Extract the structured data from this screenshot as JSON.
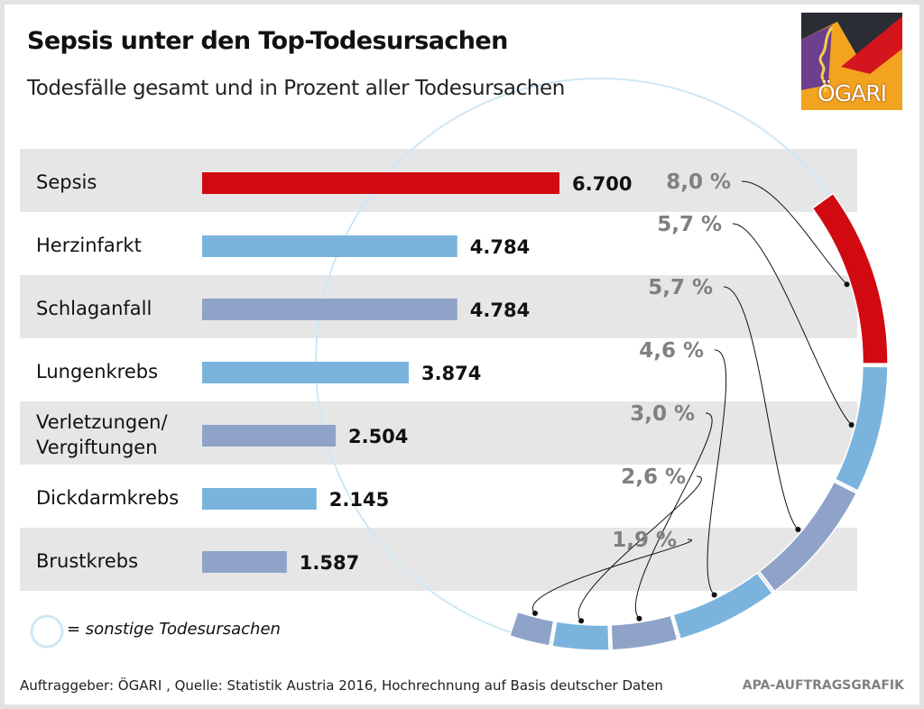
{
  "title": "Sepsis unter den Top-Todesursachen",
  "subtitle": "Todesfälle gesamt und in Prozent aller Todesursachen",
  "logo": {
    "text": "ÖGARI"
  },
  "legend": {
    "text": "= sonstige Todesursachen",
    "icon": "circle-outline-icon"
  },
  "source": "Auftraggeber: ÖGARI , Quelle: Statistik Austria 2016, Hochrechnung auf Basis deutscher Daten",
  "credit": "APA-AUFTRAGSGRAFIK",
  "colors": {
    "highlight": "#d10a12",
    "light_blue": "#7ab4dd",
    "grey_blue": "#8fa3c8",
    "row_shade": "#e6e6e6",
    "percent_text": "#808080",
    "ring_outline": "#cfe7f5"
  },
  "chart_data": {
    "type": "bar",
    "orientation": "horizontal",
    "title": "Sepsis unter den Top-Todesursachen",
    "subtitle": "Todesfälle gesamt und in Prozent aller Todesursachen",
    "xlim": [
      0,
      6700
    ],
    "categories": [
      {
        "label_lines": [
          "Sepsis"
        ],
        "value": 6700,
        "value_label": "6.700",
        "percent": 8.0,
        "percent_label": "8,0 %",
        "color": "#d10a12"
      },
      {
        "label_lines": [
          "Herzinfarkt"
        ],
        "value": 4784,
        "value_label": "4.784",
        "percent": 5.7,
        "percent_label": "5,7 %",
        "color": "#7ab4dd"
      },
      {
        "label_lines": [
          "Schlaganfall"
        ],
        "value": 4784,
        "value_label": "4.784",
        "percent": 5.7,
        "percent_label": "5,7 %",
        "color": "#8fa3c8"
      },
      {
        "label_lines": [
          "Lungenkrebs"
        ],
        "value": 3874,
        "value_label": "3.874",
        "percent": 4.6,
        "percent_label": "4,6 %",
        "color": "#7ab4dd"
      },
      {
        "label_lines": [
          "Verletzungen/",
          "Vergiftungen"
        ],
        "value": 2504,
        "value_label": "2.504",
        "percent": 3.0,
        "percent_label": "3,0 %",
        "color": "#8fa3c8"
      },
      {
        "label_lines": [
          "Dickdarmkrebs"
        ],
        "value": 2145,
        "value_label": "2.145",
        "percent": 2.6,
        "percent_label": "2,6 %",
        "color": "#7ab4dd"
      },
      {
        "label_lines": [
          "Brustkrebs"
        ],
        "value": 1587,
        "value_label": "1.587",
        "percent": 1.9,
        "percent_label": "1,9 %",
        "color": "#8fa3c8"
      }
    ],
    "ring": {
      "type": "pie",
      "segments_percent": [
        8.0,
        5.7,
        5.7,
        4.6,
        3.0,
        2.6,
        1.9
      ],
      "remaining_label": "= sonstige Todesursachen"
    }
  }
}
